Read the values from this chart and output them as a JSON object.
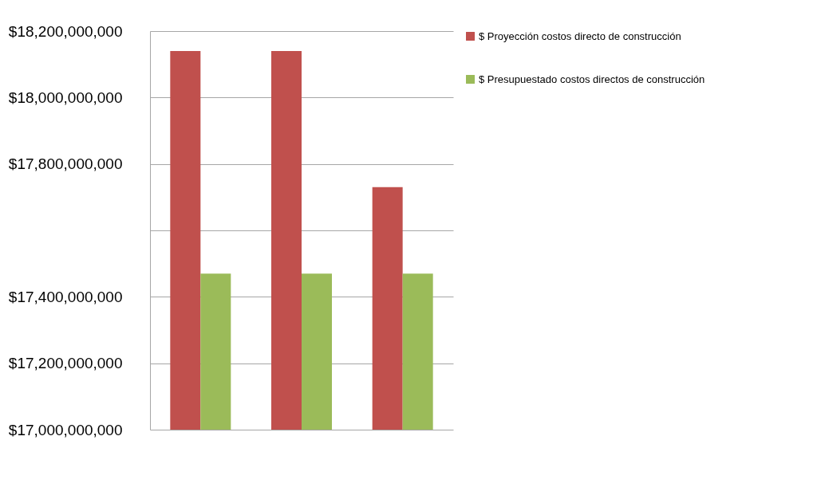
{
  "chart_data": {
    "type": "bar",
    "categories": [
      null,
      null,
      null
    ],
    "series": [
      {
        "name": "$ Proyección costos directo de construcción",
        "color": "#c0504d",
        "values": [
          18140000000,
          18140000000,
          17730000000
        ]
      },
      {
        "name": "$ Presupuestado costos directos de construcción",
        "color": "#9bbb59",
        "values": [
          17470000000,
          17470000000,
          17470000000
        ]
      }
    ],
    "ylim": [
      17000000000,
      18200000000
    ],
    "yticks": [
      {
        "value": 17000000000,
        "label": "$17,000,000,000"
      },
      {
        "value": 17200000000,
        "label": "$17,200,000,000"
      },
      {
        "value": 17400000000,
        "label": "$17,400,000,000"
      },
      {
        "value": 17600000000,
        "label": null
      },
      {
        "value": 17800000000,
        "label": "$17,800,000,000"
      },
      {
        "value": 18000000000,
        "label": "$18,000,000,000"
      },
      {
        "value": 18200000000,
        "label": "$18,200,000,000"
      }
    ],
    "grid": "y",
    "legend": "right",
    "tick_labels": "y"
  }
}
